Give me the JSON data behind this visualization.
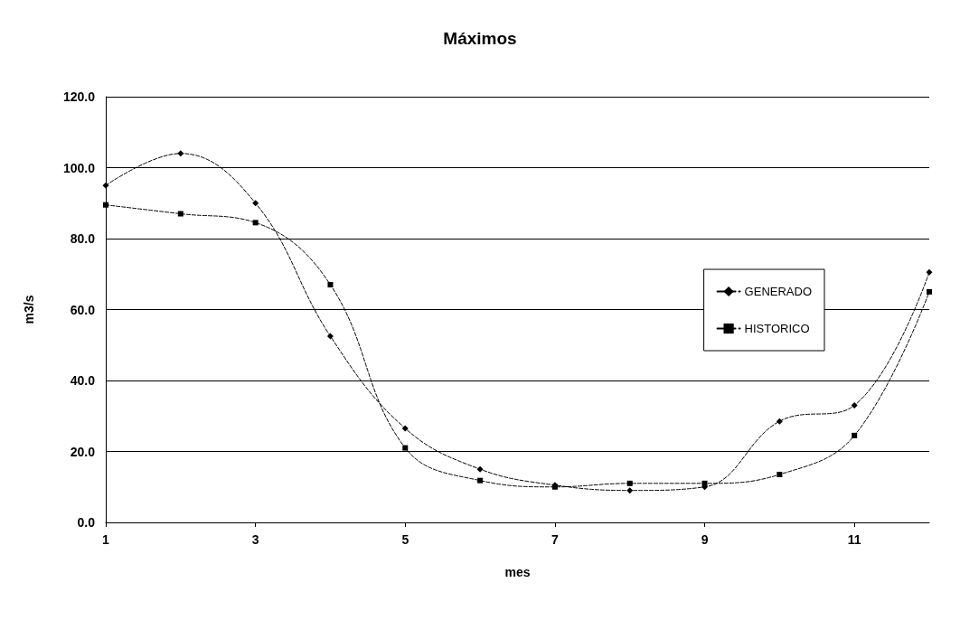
{
  "chart_data": {
    "type": "line",
    "title": "Máximos",
    "xlabel": "mes",
    "ylabel": "m3/s",
    "x": [
      1,
      2,
      3,
      4,
      5,
      6,
      7,
      8,
      9,
      10,
      11,
      12
    ],
    "series": [
      {
        "name": "GENERADO",
        "color": "#000000",
        "marker": "diamond",
        "values": [
          95,
          104,
          90,
          52.5,
          26.5,
          15,
          10.5,
          9,
          10,
          28.5,
          33,
          70.5
        ]
      },
      {
        "name": "HISTORICO",
        "color": "#000000",
        "marker": "square",
        "values": [
          89.5,
          87,
          84.5,
          67,
          21,
          11.8,
          10,
          11,
          11,
          13.5,
          24.5,
          65
        ]
      }
    ],
    "xlim": [
      1,
      12
    ],
    "xticks": [
      1,
      3,
      5,
      7,
      9,
      11
    ],
    "ylim": [
      0,
      120
    ],
    "yticks": [
      {
        "value": 0,
        "label": "0.0"
      },
      {
        "value": 20,
        "label": "20.0"
      },
      {
        "value": 40,
        "label": "40.0"
      },
      {
        "value": 60,
        "label": "60.0"
      },
      {
        "value": 80,
        "label": "80.0"
      },
      {
        "value": 100,
        "label": "100.0"
      },
      {
        "value": 120,
        "label": "120.0"
      }
    ],
    "grid": "y",
    "legend": "right",
    "line_style": "dashed"
  }
}
